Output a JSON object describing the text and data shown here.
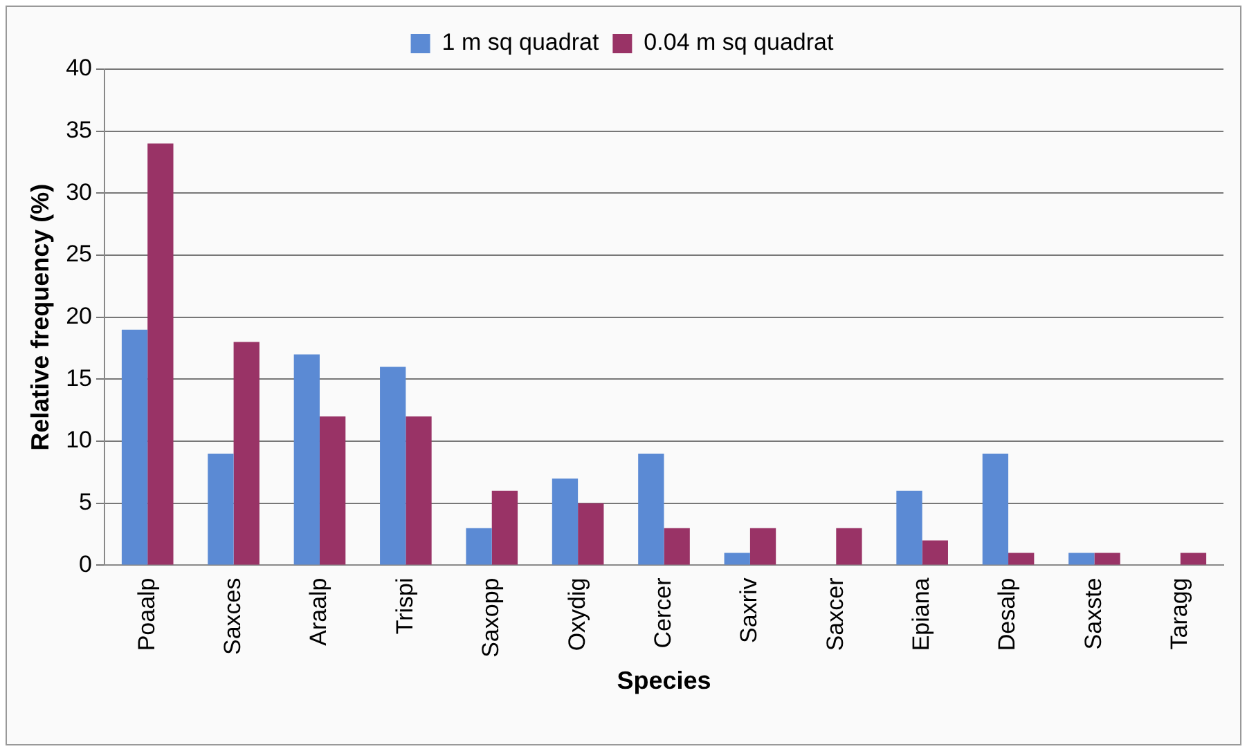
{
  "chart_data": {
    "type": "bar",
    "xlabel": "Species",
    "ylabel": "Relative frequency (%)",
    "categories": [
      "Poaalp",
      "Saxces",
      "Araalp",
      "Trispi",
      "Saxopp",
      "Oxydig",
      "Cercer",
      "Saxriv",
      "Saxcer",
      "Epiana",
      "Desalp",
      "Saxste",
      "Taragg"
    ],
    "series": [
      {
        "name": "1 m sq quadrat",
        "color": "#5b8ad4",
        "values": [
          19,
          9,
          17,
          16,
          3,
          7,
          9,
          1,
          0,
          6,
          9,
          1,
          0
        ]
      },
      {
        "name": "0.04 m sq quadrat",
        "color": "#993366",
        "values": [
          34,
          18,
          12,
          12,
          6,
          5,
          3,
          3,
          3,
          2,
          1,
          1,
          1
        ]
      }
    ],
    "ylim": [
      0,
      40
    ],
    "yticks": [
      0,
      5,
      10,
      15,
      20,
      25,
      30,
      35,
      40
    ],
    "grid": "y",
    "legend": "top"
  }
}
